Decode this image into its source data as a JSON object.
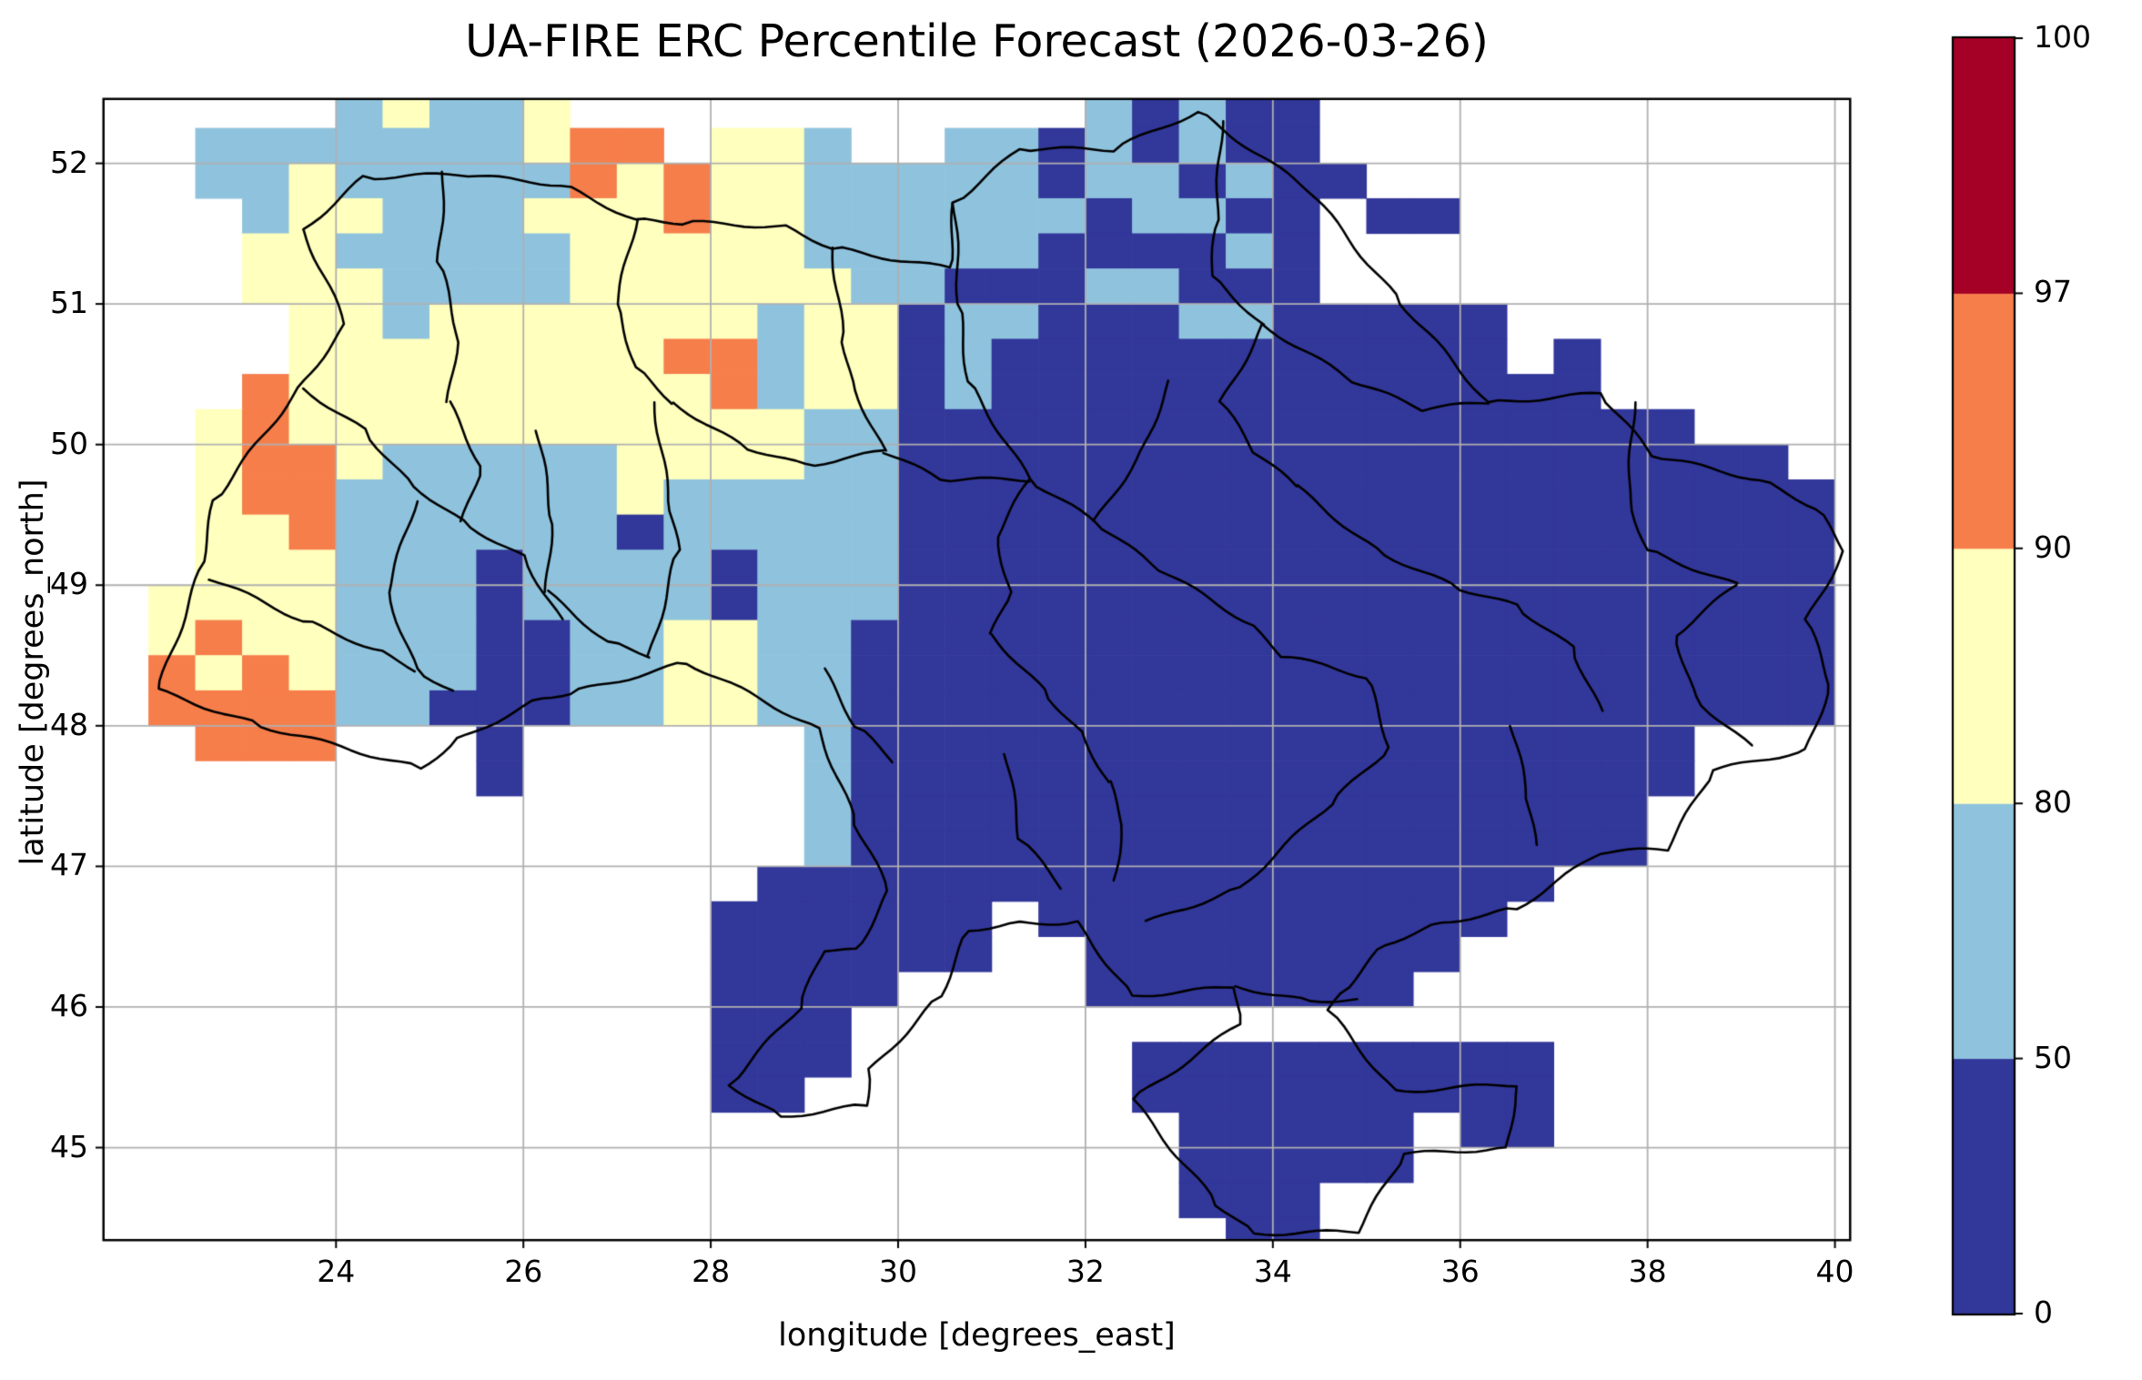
{
  "title": "UA-FIRE ERC Percentile Forecast (2026-03-26)",
  "axes": {
    "xlabel": "longitude [degrees_east]",
    "ylabel": "latitude [degrees_north]",
    "x_ticks": [
      24,
      26,
      28,
      30,
      32,
      34,
      36,
      38,
      40
    ],
    "y_ticks": [
      45,
      46,
      47,
      48,
      49,
      50,
      51,
      52
    ],
    "xlim": [
      21.53,
      40.15
    ],
    "ylim": [
      44.35,
      52.45
    ],
    "grid": true,
    "grid_color": "#b0b0b0",
    "spine_color": "#000000",
    "background": "#ffffff"
  },
  "colorbar": {
    "boundaries": [
      0,
      50,
      80,
      90,
      97,
      100
    ],
    "tick_labels": [
      "0",
      "50",
      "80",
      "90",
      "97",
      "100"
    ],
    "colors": [
      "#32379a",
      "#8fc3dd",
      "#ffffbe",
      "#f67e4b",
      "#a50026"
    ],
    "spacing": "uniform",
    "outline_color": "#000000"
  },
  "chart_data": {
    "type": "heatmap",
    "title": "UA-FIRE ERC Percentile Forecast (2026-03-26)",
    "xlabel": "longitude [degrees_east]",
    "ylabel": "latitude [degrees_north]",
    "units": "ERC percentile",
    "classes": {
      "1": {
        "range": "0-50",
        "color": "#32379a"
      },
      "2": {
        "range": "50-80",
        "color": "#8fc3dd"
      },
      "3": {
        "range": "80-90",
        "color": "#ffffbe"
      },
      "4": {
        "range": "90-97",
        "color": "#f67e4b"
      },
      "5": {
        "range": "97-100",
        "color": "#a50026"
      }
    },
    "grid": {
      "lon_start": 22.0,
      "dlon": 0.5,
      "cols": 36,
      "lat_start_top": 52.5,
      "dlat": 0.25,
      "rows": 33,
      "no_data": ".",
      "cells": [
        "....23223...........21211...........",
        ".2222222344.332..22121211...........",
        ".2232222243433222221221211..........",
        "..23322233343322222212211.11........",
        "..33222223333322222111121...........",
        "..33322223333332211122111...........",
        "...33233333332331221112211111.......",
        "...33333333442331211111111111.1.....",
        "..43333333334233121111111111111.....",
        ".34333333333332211111111111111111...",
        ".3443222223333221111111111111111111.",
        ".34422222232222211111111111111111111",
        ".33422222212222211111111111111111111",
        ".33322212222122211111111111111111111",
        "333322212222122211111111111111111111",
        "343322211223322111111111111111111111",
        "434322211223322111111111111111111111",
        "444422111223322111111111111111111111",
        ".444...1......2111111111111111111...",
        ".......1......2111111111111111111...",
        "..............211111111111111111....",
        "..............211111111111111111....",
        ".............11111111111111111......",
        "............111111.1111111111.......",
        "............111111..11111111........",
        "............1111....1111111.........",
        "............111.....................",
        "............111......111111111......",
        "............11.......111111111......",
        "......................11111.11......",
        "......................11111.........",
        "......................111...........",
        ".......................11..........."
      ]
    },
    "borders": {
      "color": "#000000",
      "width": 2.6,
      "country_outline": [
        [
          23.65,
          51.53
        ],
        [
          24.3,
          51.9
        ],
        [
          25.3,
          51.92
        ],
        [
          26.4,
          51.85
        ],
        [
          27.2,
          51.6
        ],
        [
          27.7,
          51.58
        ],
        [
          28.8,
          51.55
        ],
        [
          29.3,
          51.4
        ],
        [
          30.55,
          51.25
        ],
        [
          30.6,
          51.72
        ],
        [
          31.3,
          52.1
        ],
        [
          32.3,
          52.1
        ],
        [
          33.2,
          52.37
        ],
        [
          34.4,
          51.8
        ],
        [
          35.3,
          51.06
        ],
        [
          36.3,
          50.3
        ],
        [
          37.5,
          50.36
        ],
        [
          38.05,
          49.92
        ],
        [
          39.2,
          49.75
        ],
        [
          39.8,
          49.55
        ],
        [
          40.1,
          49.25
        ],
        [
          39.7,
          48.75
        ],
        [
          39.95,
          48.3
        ],
        [
          39.7,
          47.83
        ],
        [
          38.7,
          47.68
        ],
        [
          38.2,
          47.12
        ],
        [
          37.5,
          47.1
        ],
        [
          36.6,
          46.7
        ],
        [
          35.8,
          46.6
        ],
        [
          35.2,
          46.45
        ],
        [
          34.8,
          46.15
        ],
        [
          34.6,
          45.97
        ],
        [
          35.3,
          45.4
        ],
        [
          36.6,
          45.45
        ],
        [
          36.5,
          45.0
        ],
        [
          35.4,
          44.95
        ],
        [
          34.9,
          44.4
        ],
        [
          33.8,
          44.39
        ],
        [
          33.4,
          44.6
        ],
        [
          32.5,
          45.34
        ],
        [
          33.65,
          45.88
        ],
        [
          33.6,
          46.14
        ],
        [
          32.5,
          46.08
        ],
        [
          31.9,
          46.6
        ],
        [
          31.3,
          46.6
        ],
        [
          30.75,
          46.55
        ],
        [
          30.45,
          46.08
        ],
        [
          29.7,
          45.55
        ],
        [
          29.65,
          45.3
        ],
        [
          28.75,
          45.22
        ],
        [
          28.2,
          45.45
        ],
        [
          28.95,
          46.0
        ],
        [
          29.2,
          46.4
        ],
        [
          29.55,
          46.4
        ],
        [
          29.9,
          46.82
        ],
        [
          29.55,
          47.3
        ],
        [
          29.15,
          47.98
        ],
        [
          27.75,
          48.45
        ],
        [
          26.6,
          48.25
        ],
        [
          26.2,
          48.2
        ],
        [
          25.3,
          47.9
        ],
        [
          24.9,
          47.7
        ],
        [
          23.2,
          48.0
        ],
        [
          22.1,
          48.25
        ],
        [
          22.55,
          49.1
        ],
        [
          22.7,
          49.6
        ],
        [
          23.6,
          50.4
        ],
        [
          24.1,
          50.85
        ],
        [
          23.65,
          51.53
        ]
      ],
      "internal": [
        [
          [
            25.15,
            51.94
          ],
          [
            25.1,
            51.3
          ],
          [
            25.3,
            50.8
          ],
          [
            25.2,
            50.3
          ]
        ],
        [
          [
            27.2,
            51.6
          ],
          [
            27.0,
            51.0
          ],
          [
            27.2,
            50.55
          ],
          [
            27.6,
            50.3
          ]
        ],
        [
          [
            29.3,
            51.4
          ],
          [
            29.4,
            50.8
          ],
          [
            29.5,
            50.45
          ],
          [
            29.85,
            49.95
          ]
        ],
        [
          [
            30.6,
            51.72
          ],
          [
            30.65,
            51.0
          ],
          [
            30.75,
            50.45
          ],
          [
            31.4,
            49.75
          ],
          [
            32.1,
            49.45
          ],
          [
            32.7,
            49.15
          ],
          [
            33.7,
            48.75
          ],
          [
            34.1,
            48.5
          ],
          [
            35.0,
            48.35
          ],
          [
            35.25,
            47.85
          ],
          [
            34.7,
            47.5
          ],
          [
            33.65,
            46.85
          ],
          [
            32.65,
            46.6
          ]
        ],
        [
          [
            33.45,
            52.3
          ],
          [
            33.4,
            51.6
          ],
          [
            33.35,
            51.2
          ],
          [
            33.9,
            50.85
          ]
        ],
        [
          [
            33.9,
            50.85
          ],
          [
            34.85,
            50.45
          ],
          [
            35.6,
            50.25
          ],
          [
            36.3,
            50.3
          ]
        ],
        [
          [
            33.9,
            50.85
          ],
          [
            33.45,
            50.3
          ],
          [
            33.8,
            49.95
          ],
          [
            34.25,
            49.7
          ]
        ],
        [
          [
            37.85,
            50.3
          ],
          [
            37.8,
            49.6
          ],
          [
            38.0,
            49.25
          ],
          [
            38.95,
            49.0
          ]
        ],
        [
          [
            38.95,
            49.0
          ],
          [
            38.3,
            48.65
          ],
          [
            38.5,
            48.2
          ],
          [
            39.1,
            47.85
          ]
        ],
        [
          [
            36.55,
            48.0
          ],
          [
            36.7,
            47.55
          ],
          [
            36.8,
            47.15
          ]
        ],
        [
          [
            34.25,
            49.7
          ],
          [
            35.1,
            49.25
          ],
          [
            35.9,
            49.0
          ],
          [
            36.6,
            48.85
          ],
          [
            37.2,
            48.55
          ],
          [
            37.5,
            48.1
          ]
        ],
        [
          [
            31.0,
            48.65
          ],
          [
            31.55,
            48.25
          ],
          [
            31.95,
            47.95
          ],
          [
            32.25,
            47.6
          ]
        ],
        [
          [
            31.15,
            47.8
          ],
          [
            31.3,
            47.2
          ],
          [
            31.75,
            46.85
          ]
        ],
        [
          [
            29.2,
            48.4
          ],
          [
            29.55,
            48.0
          ],
          [
            29.95,
            47.75
          ]
        ],
        [
          [
            27.4,
            50.3
          ],
          [
            27.55,
            49.6
          ],
          [
            27.65,
            49.25
          ],
          [
            27.35,
            48.5
          ]
        ],
        [
          [
            26.15,
            50.1
          ],
          [
            26.3,
            49.5
          ],
          [
            26.25,
            48.95
          ]
        ],
        [
          [
            25.2,
            50.3
          ],
          [
            25.55,
            49.85
          ],
          [
            25.35,
            49.45
          ]
        ],
        [
          [
            23.65,
            50.4
          ],
          [
            24.3,
            50.1
          ],
          [
            24.75,
            49.75
          ],
          [
            25.35,
            49.45
          ],
          [
            26.0,
            49.2
          ],
          [
            26.4,
            48.75
          ]
        ],
        [
          [
            22.65,
            49.05
          ],
          [
            23.65,
            48.75
          ],
          [
            24.4,
            48.55
          ],
          [
            24.85,
            48.4
          ]
        ],
        [
          [
            24.85,
            49.6
          ],
          [
            24.55,
            48.95
          ],
          [
            24.85,
            48.4
          ],
          [
            25.25,
            48.25
          ]
        ],
        [
          [
            31.4,
            49.75
          ],
          [
            31.05,
            49.35
          ],
          [
            31.2,
            48.95
          ],
          [
            31.0,
            48.65
          ]
        ],
        [
          [
            32.9,
            50.45
          ],
          [
            32.6,
            49.95
          ],
          [
            32.1,
            49.45
          ]
        ],
        [
          [
            32.25,
            47.6
          ],
          [
            32.4,
            47.3
          ],
          [
            32.3,
            46.9
          ]
        ],
        [
          [
            27.6,
            50.3
          ],
          [
            28.3,
            50.0
          ],
          [
            29.0,
            49.85
          ],
          [
            29.85,
            49.95
          ]
        ],
        [
          [
            29.85,
            49.95
          ],
          [
            30.45,
            49.75
          ],
          [
            31.4,
            49.75
          ]
        ],
        [
          [
            26.25,
            48.95
          ],
          [
            26.9,
            48.6
          ],
          [
            27.35,
            48.5
          ]
        ],
        [
          [
            33.6,
            46.15
          ],
          [
            34.3,
            46.05
          ],
          [
            34.9,
            46.05
          ]
        ]
      ]
    }
  }
}
